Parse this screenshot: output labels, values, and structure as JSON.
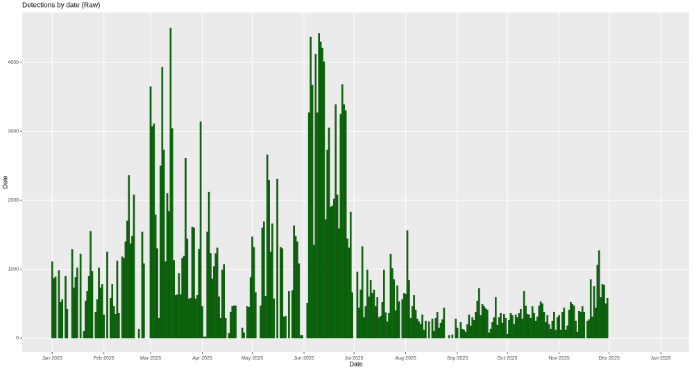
{
  "chart_data": {
    "type": "bar",
    "title": "Detections by date (Raw)",
    "x_label": "Date",
    "y_label": "Date",
    "color": "#0b6b0b",
    "edge_color": "#0a3d0a",
    "grid": true,
    "xlim": [
      -18,
      382
    ],
    "ylim": [
      -201,
      4724
    ],
    "xticks": [
      {
        "value": 0,
        "label": "Jan-2025"
      },
      {
        "value": 31,
        "label": "Feb-2025"
      },
      {
        "value": 59,
        "label": "Mar-2025"
      },
      {
        "value": 90,
        "label": "Apr-2025"
      },
      {
        "value": 120,
        "label": "May-2025"
      },
      {
        "value": 151,
        "label": "Jun-2025"
      },
      {
        "value": 181,
        "label": "Jul-2025"
      },
      {
        "value": 212,
        "label": "Aug-2025"
      },
      {
        "value": 243,
        "label": "Sep-2025"
      },
      {
        "value": 273,
        "label": "Oct-2025"
      },
      {
        "value": 304,
        "label": "Nov-2025"
      },
      {
        "value": 334,
        "label": "Dec-2025"
      },
      {
        "value": 365,
        "label": "Jan-2026"
      }
    ],
    "yticks": [
      0,
      1000,
      2000,
      3000,
      4000
    ],
    "x": [
      0,
      1,
      2,
      3,
      4,
      5,
      6,
      7,
      8,
      9,
      10,
      11,
      12,
      13,
      14,
      15,
      16,
      17,
      18,
      19,
      20,
      21,
      22,
      23,
      24,
      25,
      26,
      27,
      28,
      29,
      30,
      31,
      32,
      33,
      34,
      35,
      36,
      37,
      38,
      39,
      40,
      41,
      42,
      43,
      44,
      45,
      46,
      47,
      48,
      49,
      50,
      51,
      52,
      53,
      54,
      55,
      56,
      57,
      58,
      59,
      60,
      61,
      62,
      63,
      64,
      65,
      66,
      67,
      68,
      69,
      70,
      71,
      72,
      73,
      74,
      75,
      76,
      77,
      78,
      79,
      80,
      81,
      82,
      83,
      84,
      85,
      86,
      87,
      88,
      89,
      90,
      91,
      92,
      93,
      94,
      95,
      96,
      97,
      98,
      99,
      100,
      101,
      102,
      103,
      104,
      105,
      106,
      107,
      108,
      109,
      110,
      111,
      112,
      113,
      114,
      115,
      116,
      117,
      118,
      119,
      120,
      121,
      122,
      123,
      124,
      125,
      126,
      127,
      128,
      129,
      130,
      131,
      132,
      133,
      134,
      135,
      136,
      137,
      138,
      139,
      140,
      141,
      142,
      143,
      144,
      145,
      146,
      147,
      148,
      149,
      150,
      151,
      152,
      153,
      154,
      155,
      156,
      157,
      158,
      159,
      160,
      161,
      162,
      163,
      164,
      165,
      166,
      167,
      168,
      169,
      170,
      171,
      172,
      173,
      174,
      175,
      176,
      177,
      178,
      179,
      180,
      181,
      182,
      183,
      184,
      185,
      186,
      187,
      188,
      189,
      190,
      191,
      192,
      193,
      194,
      195,
      196,
      197,
      198,
      199,
      200,
      201,
      202,
      203,
      204,
      205,
      206,
      207,
      208,
      209,
      210,
      211,
      212,
      213,
      214,
      215,
      216,
      217,
      218,
      219,
      220,
      221,
      222,
      223,
      224,
      225,
      226,
      227,
      228,
      229,
      230,
      231,
      232,
      233,
      234,
      235,
      236,
      237,
      238,
      239,
      240,
      241,
      242,
      243,
      244,
      245,
      246,
      247,
      248,
      249,
      250,
      251,
      252,
      253,
      254,
      255,
      256,
      257,
      258,
      259,
      260,
      261,
      262,
      263,
      264,
      265,
      266,
      267,
      268,
      269,
      270,
      271,
      272,
      273,
      274,
      275,
      276,
      277,
      278,
      279,
      280,
      281,
      282,
      283,
      284,
      285,
      286,
      287,
      288,
      289,
      290,
      291,
      292,
      293,
      294,
      295,
      296,
      297,
      298,
      299,
      300,
      301,
      302,
      303,
      304,
      305,
      306,
      307,
      308,
      309,
      310,
      311,
      312,
      313,
      314,
      315,
      316,
      317,
      318,
      319,
      320,
      321,
      322,
      323,
      324,
      325,
      326,
      327,
      328,
      329,
      330,
      331,
      332,
      333
    ],
    "values": [
      1110,
      870,
      890,
      0,
      980,
      520,
      560,
      0,
      900,
      420,
      0,
      0,
      1290,
      730,
      880,
      1020,
      0,
      1220,
      0,
      100,
      540,
      680,
      900,
      1550,
      970,
      0,
      380,
      560,
      1020,
      730,
      780,
      340,
      0,
      1250,
      0,
      580,
      780,
      460,
      350,
      1120,
      360,
      0,
      1180,
      1160,
      1400,
      1700,
      2360,
      1370,
      1480,
      2080,
      0,
      0,
      130,
      0,
      1540,
      1080,
      0,
      0,
      0,
      3650,
      3070,
      3110,
      1790,
      1300,
      290,
      2500,
      3930,
      2730,
      1110,
      2100,
      1840,
      4500,
      3040,
      1130,
      620,
      630,
      940,
      630,
      1160,
      1190,
      2610,
      1440,
      570,
      580,
      1610,
      1600,
      570,
      620,
      1290,
      3140,
      460,
      20,
      20,
      1540,
      2120,
      1230,
      860,
      1040,
      1230,
      1310,
      600,
      290,
      990,
      1070,
      290,
      0,
      70,
      380,
      460,
      470,
      470,
      0,
      0,
      0,
      150,
      80,
      0,
      460,
      450,
      880,
      1470,
      1320,
      660,
      0,
      0,
      470,
      1600,
      1690,
      610,
      2660,
      2290,
      1250,
      1660,
      570,
      0,
      2310,
      0,
      1320,
      1300,
      310,
      320,
      0,
      680,
      0,
      690,
      1630,
      1480,
      1400,
      1080,
      40,
      40,
      0,
      0,
      510,
      3270,
      4370,
      3670,
      1350,
      4120,
      3270,
      4420,
      4300,
      4210,
      4010,
      1720,
      2730,
      3050,
      1900,
      1920,
      2020,
      3390,
      2080,
      1590,
      3250,
      3680,
      3390,
      3300,
      1440,
      1310,
      1830,
      660,
      0,
      0,
      960,
      440,
      700,
      1330,
      300,
      460,
      990,
      600,
      840,
      650,
      700,
      460,
      590,
      300,
      320,
      520,
      990,
      370,
      240,
      360,
      1220,
      1010,
      850,
      400,
      760,
      530,
      0,
      560,
      650,
      640,
      1560,
      840,
      290,
      460,
      620,
      410,
      280,
      240,
      200,
      340,
      120,
      250,
      0,
      240,
      0,
      280,
      100,
      290,
      380,
      150,
      220,
      270,
      440,
      0,
      0,
      40,
      0,
      50,
      0,
      280,
      150,
      0,
      230,
      130,
      120,
      90,
      200,
      340,
      180,
      300,
      260,
      380,
      540,
      720,
      330,
      490,
      460,
      430,
      410,
      80,
      130,
      230,
      300,
      590,
      190,
      300,
      360,
      220,
      350,
      290,
      60,
      260,
      360,
      330,
      200,
      340,
      300,
      360,
      420,
      280,
      680,
      470,
      350,
      340,
      290,
      460,
      360,
      250,
      310,
      470,
      530,
      500,
      380,
      230,
      330,
      200,
      130,
      250,
      380,
      120,
      300,
      330,
      120,
      380,
      440,
      120,
      180,
      410,
      520,
      490,
      470,
      250,
      90,
      390,
      380,
      460,
      380,
      0,
      250,
      270,
      850,
      310,
      750,
      440,
      1060,
      1270,
      590,
      780,
      770,
      500,
      580
    ]
  }
}
